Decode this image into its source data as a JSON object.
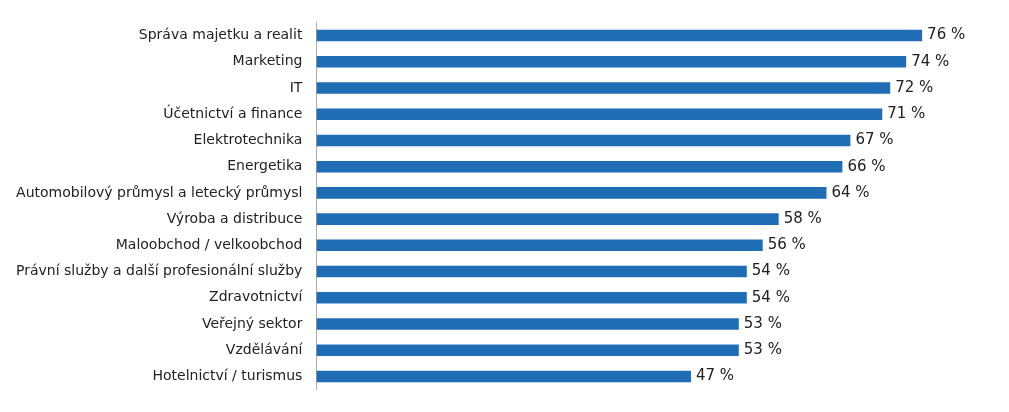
{
  "chart_data": {
    "type": "bar",
    "orientation": "horizontal",
    "categories": [
      "Správa majetku a realit",
      "Marketing",
      "IT",
      "Účetnictví a finance",
      "Elektrotechnika",
      "Energetika",
      "Automobilový průmysl a letecký průmysl",
      "Výroba a distribuce",
      "Maloobchod / velkoobchod",
      "Právní služby a další profesionální služby",
      "Zdravotnictví",
      "Veřejný sektor",
      "Vzdělávání",
      "Hotelnictví / turismus"
    ],
    "values": [
      76,
      74,
      72,
      71,
      67,
      66,
      64,
      58,
      56,
      54,
      54,
      53,
      53,
      47
    ],
    "value_labels": [
      "76 %",
      "74 %",
      "72 %",
      "71 %",
      "67 %",
      "66 %",
      "64 %",
      "58 %",
      "56 %",
      "54 %",
      "54 %",
      "53 %",
      "53 %",
      "47 %"
    ],
    "color": "#1f6db5",
    "tick_labels": "y",
    "legend": false
  }
}
